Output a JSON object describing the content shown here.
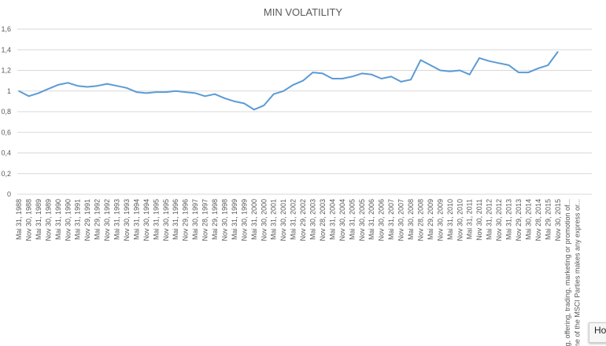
{
  "chart_data": {
    "type": "line",
    "title": "MIN VOLATILITY",
    "xlabel": "",
    "ylabel": "",
    "ylim": [
      0,
      1.6
    ],
    "yticks": [
      "0",
      "0,2",
      "0,4",
      "0,6",
      "0,8",
      "1",
      "1,2",
      "1,4",
      "1,6"
    ],
    "grid": true,
    "legend": "none",
    "color": "#5b9bd5",
    "categories": [
      "Mai 31, 1988",
      "Nov 30, 1988",
      "Mai 31, 1989",
      "Nov 30, 1989",
      "Mai 31, 1990",
      "Nov 30, 1990",
      "Mai 31, 1991",
      "Nov 29, 1991",
      "Mai 29, 1992",
      "Nov 30, 1992",
      "Mai 31, 1993",
      "Nov 30, 1993",
      "Mai 31, 1994",
      "Nov 30, 1994",
      "Mai 31, 1995",
      "Nov 30, 1995",
      "Mai 31, 1996",
      "Nov 29, 1996",
      "Mai 30, 1997",
      "Nov 28, 1997",
      "Mai 29, 1998",
      "Nov 30, 1998",
      "Mai 31, 1999",
      "Nov 30, 1999",
      "Mai 31, 2000",
      "Nov 30, 2000",
      "Mai 31, 2001",
      "Nov 30, 2001",
      "Mai 31, 2002",
      "Nov 29, 2002",
      "Mai 30, 2003",
      "Nov 28, 2003",
      "Mai 31, 2004",
      "Nov 30, 2004",
      "Mai 31, 2005",
      "Nov 30, 2005",
      "Mai 31, 2006",
      "Nov 30, 2006",
      "Mai 31, 2007",
      "Nov 30, 2007",
      "Mai 30, 2008",
      "Nov 28, 2008",
      "Mai 29, 2009",
      "Nov 30, 2009",
      "Mai 31, 2010",
      "Nov 30, 2010",
      "Mai 31, 2011",
      "Nov 30, 2011",
      "Mai 31, 2012",
      "Nov 30, 2012",
      "Mai 31, 2013",
      "Nov 29, 2013",
      "Mai 30, 2014",
      "Nov 28, 2014",
      "Mai 29, 2015",
      "Nov 30, 2015",
      "writing, offering, trading, marketing or promotion of...",
      "None of the MSCI Parties makes any express or..."
    ],
    "series": [
      {
        "values": [
          1.0,
          0.95,
          0.98,
          1.02,
          1.06,
          1.08,
          1.05,
          1.04,
          1.05,
          1.07,
          1.05,
          1.03,
          0.99,
          0.98,
          0.99,
          0.99,
          1.0,
          0.99,
          0.98,
          0.95,
          0.97,
          0.93,
          0.9,
          0.88,
          0.82,
          0.86,
          0.97,
          1.0,
          1.06,
          1.1,
          1.18,
          1.17,
          1.12,
          1.12,
          1.14,
          1.17,
          1.16,
          1.12,
          1.14,
          1.09,
          1.11,
          1.3,
          1.25,
          1.2,
          1.19,
          1.2,
          1.16,
          1.32,
          1.29,
          1.27,
          1.25,
          1.18,
          1.18,
          1.22,
          1.25,
          1.38,
          null,
          null
        ]
      }
    ]
  },
  "tooltip": "Hor"
}
